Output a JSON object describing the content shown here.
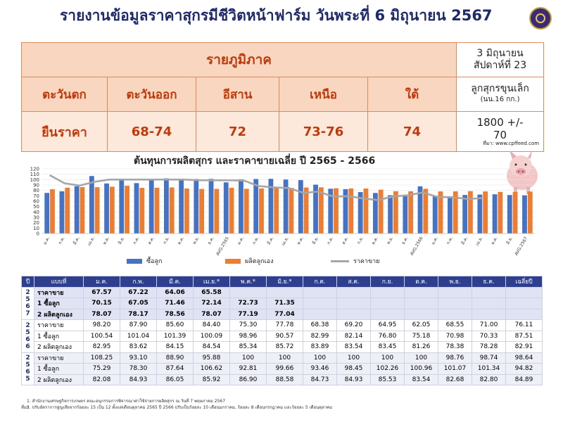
{
  "header": {
    "title": "รายงานข้อมูลราคาสุกรมีชีวิตหน้าฟาร์ม วันพระที่ 6 มิถุนายน 2567"
  },
  "price_table": {
    "regional_heading": "รายภูมิภาค",
    "date_line1": "3 มิถุนายน",
    "date_line2": "สัปดาห์ที่ 23",
    "regions": [
      "ตะวันตก",
      "ตะวันออก",
      "อีสาน",
      "เหนือ",
      "ใต้"
    ],
    "piglet_label_line1": "ลูกสุกรขุนเล็ก",
    "piglet_label_line2": "(นน.16 กก.)",
    "values": [
      "ยืนราคา",
      "68-74",
      "72",
      "73-76",
      "74"
    ],
    "piglet_price_line1": "1800 +/-",
    "piglet_price_line2": "70",
    "source": "ที่มา: www.cpffeed.com"
  },
  "chart_data": {
    "type": "bar",
    "title": "ต้นทุนการผลิตสุกร และราคาขายเฉลี่ย ปี 2565 - 2566",
    "ylim": [
      0,
      120
    ],
    "yticks": [
      "0",
      "10",
      "20",
      "30",
      "40",
      "50",
      "60",
      "70",
      "80",
      "90",
      "100",
      "110",
      "120"
    ],
    "categories": [
      "ม.ค.",
      "ก.พ.",
      "มี.ค.",
      "เม.ย.",
      "พ.ค.",
      "มิ.ย.",
      "ก.ค.",
      "ส.ค.",
      "ก.ย.",
      "ต.ค.",
      "พ.ย.",
      "ธ.ค.",
      "AVG.2565",
      "ม.ค.",
      "ก.พ.",
      "มี.ค.",
      "เม.ย.",
      "พ.ค.",
      "มิ.ย.",
      "ก.ค.",
      "ส.ค.",
      "ก.ย.",
      "ต.ค.",
      "พ.ย.",
      "ธ.ค.",
      "AVG.2566",
      "ม.ค.",
      "ก.พ.",
      "มี.ค.",
      "เม.ย.",
      "พ.ค.",
      "มิ.ย.",
      "AVG.2567"
    ],
    "series": [
      {
        "name": "ซื้อลูก",
        "type": "bar",
        "color": "#4472c4",
        "values": [
          75.29,
          78.3,
          87.64,
          106.62,
          92.81,
          99.66,
          93.46,
          98.45,
          102.26,
          100.96,
          101.07,
          101.34,
          94.82,
          100.54,
          101.04,
          101.39,
          100.09,
          98.96,
          90.57,
          82.99,
          82.14,
          76.8,
          75.18,
          70.98,
          70.33,
          87.51,
          70.15,
          67.05,
          71.46,
          72.14,
          72.73,
          71.35,
          70.81
        ]
      },
      {
        "name": "ผลิตลูกเอง",
        "type": "bar",
        "color": "#ed7d31",
        "values": [
          82.08,
          84.93,
          86.05,
          85.92,
          86.9,
          88.58,
          84.73,
          84.93,
          85.53,
          83.54,
          82.68,
          82.8,
          84.89,
          82.95,
          83.62,
          84.15,
          84.54,
          85.34,
          85.72,
          83.89,
          83.54,
          83.45,
          81.26,
          78.38,
          78.28,
          82.91,
          78.07,
          78.17,
          78.56,
          78.07,
          77.19,
          77.04,
          77.85
        ]
      },
      {
        "name": "ราคาขาย",
        "type": "line",
        "color": "#a6a6a6",
        "values": [
          108.25,
          93.1,
          88.9,
          95.88,
          100,
          100,
          100,
          100,
          100,
          100,
          98.76,
          98.74,
          98.64,
          98.2,
          87.9,
          85.6,
          84.4,
          75.3,
          77.78,
          68.38,
          69.2,
          64.95,
          62.05,
          68.55,
          71.0,
          76.11,
          67.57,
          67.22,
          64.06,
          65.58,
          null,
          null,
          null
        ]
      }
    ]
  },
  "data_table": {
    "headers": [
      "ปี",
      "แบบที่",
      "ม.ค.",
      "ก.พ.",
      "มี.ค.",
      "เม.ย.*",
      "พ.ค.*",
      "มิ.ย.*",
      "ก.ค.",
      "ส.ค.",
      "ก.ย.",
      "ต.ค.",
      "พ.ย.",
      "ธ.ค.",
      "เฉลี่ยปี"
    ],
    "groups": [
      {
        "year_chars": [
          "2",
          "5",
          "6",
          "7"
        ],
        "rows": [
          {
            "label": "ราคาขาย",
            "cells": [
              "67.57",
              "67.22",
              "64.06",
              "65.58",
              "",
              "",
              "",
              "",
              "",
              "",
              "",
              "",
              ""
            ]
          },
          {
            "label": "1 ซื้อลูก",
            "cells": [
              "70.15",
              "67.05",
              "71.46",
              "72.14",
              "72.73",
              "71.35",
              "",
              "",
              "",
              "",
              "",
              "",
              ""
            ]
          },
          {
            "label": "2 ผลิตลูกเอง",
            "cells": [
              "78.07",
              "78.17",
              "78.56",
              "78.07",
              "77.19",
              "77.04",
              "",
              "",
              "",
              "",
              "",
              "",
              ""
            ]
          }
        ]
      },
      {
        "year_chars": [
          "2",
          "5",
          "6",
          "6"
        ],
        "rows": [
          {
            "label": "ราคาขาย",
            "cells": [
              "98.20",
              "87.90",
              "85.60",
              "84.40",
              "75.30",
              "77.78",
              "68.38",
              "69.20",
              "64.95",
              "62.05",
              "68.55",
              "71.00",
              "76.11"
            ]
          },
          {
            "label": "1 ซื้อลูก",
            "cells": [
              "100.54",
              "101.04",
              "101.39",
              "100.09",
              "98.96",
              "90.57",
              "82.99",
              "82.14",
              "76.80",
              "75.18",
              "70.98",
              "70.33",
              "87.51"
            ]
          },
          {
            "label": "2 ผลิตลูกเอง",
            "cells": [
              "82.95",
              "83.62",
              "84.15",
              "84.54",
              "85.34",
              "85.72",
              "83.89",
              "83.54",
              "83.45",
              "81.26",
              "78.38",
              "78.28",
              "82.91"
            ]
          }
        ]
      },
      {
        "year_chars": [
          "2",
          "5",
          "6",
          "5"
        ],
        "rows": [
          {
            "label": "ราคาขาย",
            "cells": [
              "108.25",
              "93.10",
              "88.90",
              "95.88",
              "100",
              "100",
              "100",
              "100",
              "100",
              "100",
              "98.76",
              "98.74",
              "98.64"
            ]
          },
          {
            "label": "1 ซื้อลูก",
            "cells": [
              "75.29",
              "78.30",
              "87.64",
              "106.62",
              "92.81",
              "99.66",
              "93.46",
              "98.45",
              "102.26",
              "100.96",
              "101.07",
              "101.34",
              "94.82"
            ]
          },
          {
            "label": "2 ผลิตลูกเอง",
            "cells": [
              "82.08",
              "84.93",
              "86.05",
              "85.92",
              "86.90",
              "88.58",
              "84.73",
              "84.93",
              "85.53",
              "83.54",
              "82.68",
              "82.80",
              "84.89"
            ]
          }
        ]
      }
    ]
  },
  "footnotes": {
    "label": "ที่มา",
    "line1": "1. สำนักงานเศรษฐกิจการเกษตร คณะอนุกรรมการพิจารณาค่าใช้จ่ายการผลิตสุกร ณ วันที่ 7 พฤษภาคม 2567",
    "line2": "2. ปรับอัตราการสูญเสียจากร้อยละ 15 เป็น 12 ตั้งแต่เดือนตุลาคม 2565 ปี 2566 ปรับเป็นร้อยละ 10 เดือนมกราคม, ร้อยละ 8 เดือนกรกฎาคม และร้อยละ 5 เดือนตุลาคม"
  }
}
